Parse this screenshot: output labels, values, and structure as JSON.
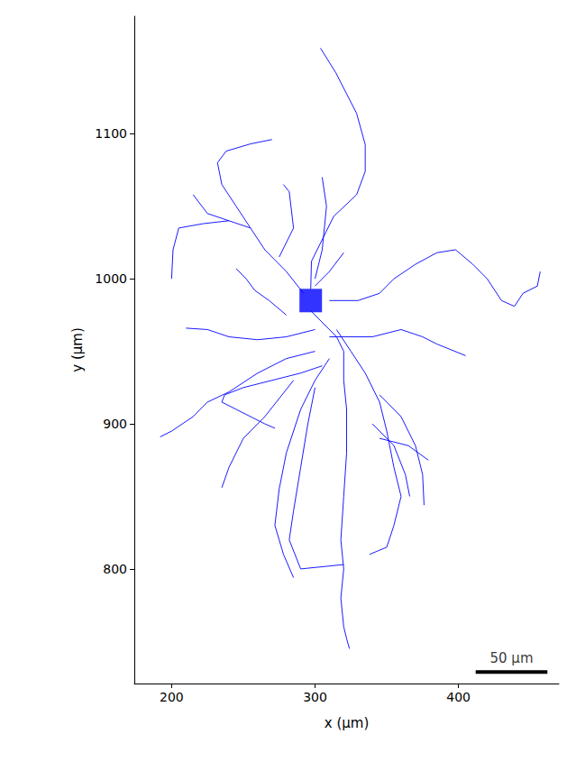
{
  "chart_data": {
    "type": "line",
    "x_label": "x (µm)",
    "y_label": "y (µm)",
    "xlim": [
      174,
      470
    ],
    "ylim": [
      721,
      1181
    ],
    "xticks": [
      200,
      300,
      400
    ],
    "yticks": [
      800,
      900,
      1000,
      1100
    ],
    "grid": false,
    "color": "#0000ff",
    "soma": {
      "x": 297,
      "y": 985,
      "marker": "square"
    },
    "scale_bar": {
      "x": [
        412,
        462
      ],
      "y": 729,
      "label": "50 µm",
      "color": "#000000"
    },
    "series": [
      {
        "x": [
          297.5,
          313,
          329,
          335,
          335,
          329,
          314.5,
          303.8
        ],
        "y": [
          1012,
          1043,
          1058,
          1074,
          1092.5,
          1114,
          1142,
          1159
        ]
      },
      {
        "x": [
          297,
          297.5
        ],
        "y": [
          993,
          1012
        ]
      },
      {
        "x": [
          292,
          280,
          265,
          255,
          240,
          225,
          215
        ],
        "y": [
          990,
          1005,
          1020,
          1035,
          1040,
          1045,
          1058
        ]
      },
      {
        "x": [
          255,
          245,
          235,
          232,
          238,
          255,
          270
        ],
        "y": [
          1035,
          1050,
          1065,
          1080,
          1088,
          1093,
          1096
        ]
      },
      {
        "x": [
          240,
          222,
          205,
          201,
          200
        ],
        "y": [
          1040,
          1038,
          1035,
          1020,
          1000
        ]
      },
      {
        "x": [
          275,
          285,
          282,
          278
        ],
        "y": [
          1015,
          1035,
          1060,
          1065
        ]
      },
      {
        "x": [
          300,
          305,
          308,
          305
        ],
        "y": [
          1000,
          1020,
          1050,
          1070
        ]
      },
      {
        "x": [
          300,
          310,
          320
        ],
        "y": [
          995,
          1005,
          1018
        ]
      },
      {
        "x": [
          310,
          330,
          345,
          355,
          370,
          385,
          398,
          410,
          420,
          430,
          439,
          445,
          455,
          457
        ],
        "y": [
          985,
          985,
          990,
          1000,
          1010,
          1018,
          1020,
          1010,
          1000,
          985,
          981,
          990,
          995,
          1005
        ]
      },
      {
        "x": [
          310,
          340,
          360,
          375,
          385,
          405
        ],
        "y": [
          960,
          960,
          965,
          960,
          955,
          947
        ]
      },
      {
        "x": [
          300,
          280,
          260,
          240,
          225,
          210
        ],
        "y": [
          965,
          960,
          958,
          960,
          965,
          966
        ]
      },
      {
        "x": [
          300,
          280,
          260,
          240,
          225,
          215,
          200,
          192
        ],
        "y": [
          950,
          945,
          935,
          922,
          915,
          905,
          895,
          891
        ]
      },
      {
        "x": [
          305,
          290,
          270,
          250,
          237,
          235,
          245,
          265,
          272
        ],
        "y": [
          940,
          935,
          930,
          925,
          920,
          915,
          910,
          900,
          897
        ]
      },
      {
        "x": [
          310,
          300,
          290,
          280,
          275,
          272,
          278,
          285
        ],
        "y": [
          945,
          930,
          910,
          880,
          855,
          830,
          810,
          794
        ]
      },
      {
        "x": [
          285,
          265,
          250,
          240,
          235
        ],
        "y": [
          930,
          905,
          890,
          870,
          856
        ]
      },
      {
        "x": [
          300,
          295,
          290,
          285,
          282,
          290,
          320
        ],
        "y": [
          925,
          900,
          870,
          840,
          820,
          800,
          803
        ]
      },
      {
        "x": [
          297,
          315,
          320,
          320,
          322,
          322,
          320,
          318,
          320,
          318,
          320,
          322,
          324
        ],
        "y": [
          978,
          960,
          950,
          930,
          910,
          880,
          850,
          820,
          800,
          780,
          760,
          752,
          745
        ]
      },
      {
        "x": [
          315,
          325,
          335,
          345,
          350,
          355,
          360,
          355,
          350,
          338
        ],
        "y": [
          965,
          950,
          935,
          915,
          895,
          870,
          850,
          830,
          815,
          810
        ]
      },
      {
        "x": [
          345,
          360,
          370,
          375,
          376
        ],
        "y": [
          920,
          905,
          885,
          865,
          844
        ]
      },
      {
        "x": [
          345,
          365,
          379
        ],
        "y": [
          890,
          885,
          875
        ]
      },
      {
        "x": [
          340,
          355,
          363,
          366
        ],
        "y": [
          900,
          885,
          865,
          850
        ]
      },
      {
        "x": [
          280,
          268,
          258,
          252,
          245
        ],
        "y": [
          975,
          985,
          992,
          1000,
          1007
        ]
      }
    ]
  }
}
